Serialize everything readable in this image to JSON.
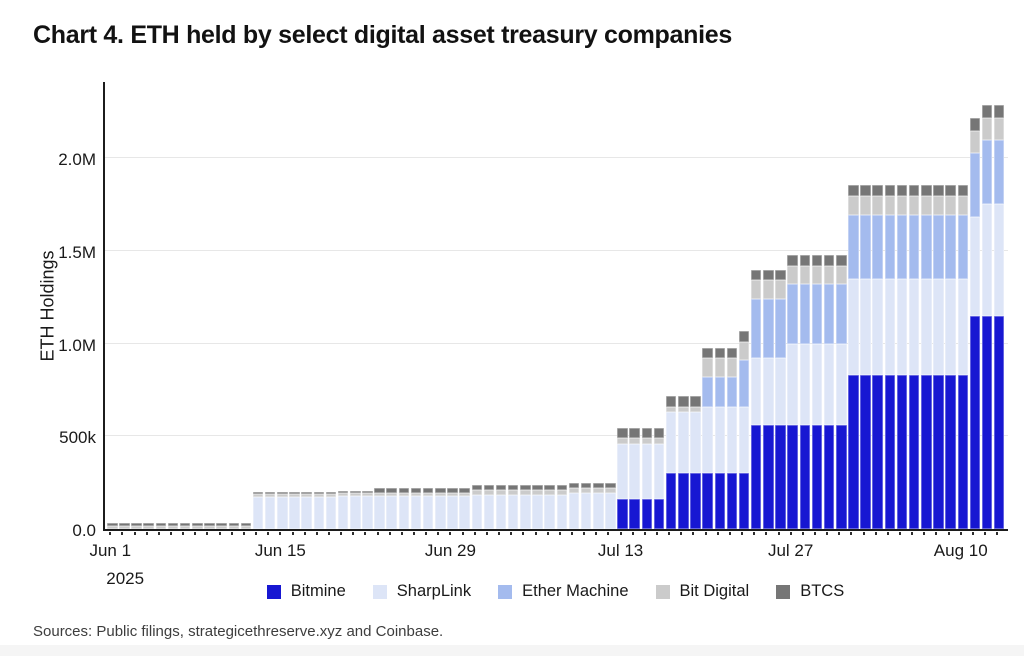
{
  "title": "Chart 4. ETH held by select digital asset treasury companies",
  "sources": "Sources: Public filings, strategicethreserve.xyz and Coinbase.",
  "chart_data": {
    "type": "bar",
    "stacked": true,
    "title": "Chart 4. ETH held by select digital asset treasury companies",
    "xlabel": "",
    "ylabel": "ETH Holdings",
    "unit": "thousand ETH",
    "ylim_thousands": [
      0,
      2420
    ],
    "grid": "horizontal",
    "legend_position": "bottom",
    "year_label": "2025",
    "y_ticks": [
      {
        "label": "0.0",
        "value": 0
      },
      {
        "label": "500k",
        "value": 500
      },
      {
        "label": "1.0M",
        "value": 1000
      },
      {
        "label": "1.5M",
        "value": 1500
      },
      {
        "label": "2.0M",
        "value": 2000
      }
    ],
    "x_ticks": [
      {
        "label": "Jun 1",
        "day_index": 0
      },
      {
        "label": "Jun 15",
        "day_index": 14
      },
      {
        "label": "Jun 29",
        "day_index": 28
      },
      {
        "label": "Jul 13",
        "day_index": 42
      },
      {
        "label": "Jul 27",
        "day_index": 56
      },
      {
        "label": "Aug 10",
        "day_index": 70
      }
    ],
    "legend": [
      {
        "key": "bitmine",
        "label": "Bitmine",
        "color": "#1717d2"
      },
      {
        "key": "sharplink",
        "label": "SharpLink",
        "color": "#dde5f7"
      },
      {
        "key": "ether_machine",
        "label": "Ether Machine",
        "color": "#a4bbee"
      },
      {
        "key": "bit_digital",
        "label": "Bit Digital",
        "color": "#cbcbcb"
      },
      {
        "key": "btcs",
        "label": "BTCS",
        "color": "#767676"
      }
    ],
    "series_order": [
      "bitmine",
      "sharplink",
      "ether_machine",
      "bit_digital",
      "btcs"
    ],
    "columns": [
      "date",
      "bitmine",
      "sharplink",
      "ether_machine",
      "bit_digital",
      "btcs"
    ],
    "days": [
      [
        "Jun 1",
        0,
        0,
        0,
        18,
        12
      ],
      [
        "Jun 2",
        0,
        0,
        0,
        18,
        12
      ],
      [
        "Jun 3",
        0,
        0,
        0,
        18,
        12
      ],
      [
        "Jun 4",
        0,
        0,
        0,
        18,
        12
      ],
      [
        "Jun 5",
        0,
        0,
        0,
        18,
        12
      ],
      [
        "Jun 6",
        0,
        0,
        0,
        18,
        12
      ],
      [
        "Jun 7",
        0,
        0,
        0,
        18,
        12
      ],
      [
        "Jun 8",
        0,
        0,
        0,
        18,
        12
      ],
      [
        "Jun 9",
        0,
        0,
        0,
        18,
        12
      ],
      [
        "Jun 10",
        0,
        0,
        0,
        18,
        12
      ],
      [
        "Jun 11",
        0,
        0,
        0,
        18,
        12
      ],
      [
        "Jun 12",
        0,
        0,
        0,
        18,
        12
      ],
      [
        "Jun 13",
        0,
        170,
        0,
        18,
        12
      ],
      [
        "Jun 14",
        0,
        170,
        0,
        18,
        12
      ],
      [
        "Jun 15",
        0,
        170,
        0,
        18,
        12
      ],
      [
        "Jun 16",
        0,
        170,
        0,
        18,
        12
      ],
      [
        "Jun 17",
        0,
        170,
        0,
        18,
        12
      ],
      [
        "Jun 18",
        0,
        170,
        0,
        18,
        12
      ],
      [
        "Jun 19",
        0,
        170,
        0,
        18,
        12
      ],
      [
        "Jun 20",
        0,
        176,
        0,
        18,
        12
      ],
      [
        "Jun 21",
        0,
        176,
        0,
        18,
        12
      ],
      [
        "Jun 22",
        0,
        176,
        0,
        18,
        12
      ],
      [
        "Jun 23",
        0,
        176,
        0,
        18,
        29
      ],
      [
        "Jun 24",
        0,
        176,
        0,
        18,
        29
      ],
      [
        "Jun 25",
        0,
        176,
        0,
        18,
        29
      ],
      [
        "Jun 26",
        0,
        176,
        0,
        18,
        29
      ],
      [
        "Jun 27",
        0,
        176,
        0,
        18,
        29
      ],
      [
        "Jun 28",
        0,
        176,
        0,
        18,
        29
      ],
      [
        "Jun 29",
        0,
        176,
        0,
        18,
        29
      ],
      [
        "Jun 30",
        0,
        176,
        0,
        18,
        29
      ],
      [
        "Jul 1",
        0,
        185,
        0,
        24,
        29
      ],
      [
        "Jul 2",
        0,
        185,
        0,
        24,
        29
      ],
      [
        "Jul 3",
        0,
        185,
        0,
        24,
        29
      ],
      [
        "Jul 4",
        0,
        185,
        0,
        24,
        29
      ],
      [
        "Jul 5",
        0,
        185,
        0,
        24,
        29
      ],
      [
        "Jul 6",
        0,
        185,
        0,
        24,
        29
      ],
      [
        "Jul 7",
        0,
        185,
        0,
        24,
        29
      ],
      [
        "Jul 8",
        0,
        185,
        0,
        24,
        29
      ],
      [
        "Jul 9",
        0,
        195,
        0,
        24,
        29
      ],
      [
        "Jul 10",
        0,
        195,
        0,
        24,
        29
      ],
      [
        "Jul 11",
        0,
        195,
        0,
        24,
        29
      ],
      [
        "Jul 12",
        0,
        195,
        0,
        24,
        29
      ],
      [
        "Jul 13",
        160,
        300,
        0,
        30,
        55
      ],
      [
        "Jul 14",
        160,
        300,
        0,
        30,
        55
      ],
      [
        "Jul 15",
        160,
        300,
        0,
        30,
        55
      ],
      [
        "Jul 16",
        160,
        300,
        0,
        30,
        55
      ],
      [
        "Jul 17",
        300,
        330,
        0,
        30,
        55
      ],
      [
        "Jul 18",
        300,
        330,
        0,
        30,
        55
      ],
      [
        "Jul 19",
        300,
        330,
        0,
        30,
        55
      ],
      [
        "Jul 20",
        300,
        360,
        160,
        100,
        55
      ],
      [
        "Jul 21",
        300,
        360,
        160,
        100,
        55
      ],
      [
        "Jul 22",
        300,
        360,
        160,
        100,
        55
      ],
      [
        "Jul 23",
        300,
        360,
        250,
        100,
        55
      ],
      [
        "Jul 24",
        560,
        360,
        320,
        100,
        55
      ],
      [
        "Jul 25",
        560,
        360,
        320,
        100,
        55
      ],
      [
        "Jul 26",
        560,
        360,
        320,
        100,
        55
      ],
      [
        "Jul 27",
        560,
        440,
        320,
        100,
        55
      ],
      [
        "Jul 28",
        560,
        440,
        320,
        100,
        55
      ],
      [
        "Jul 29",
        560,
        440,
        320,
        100,
        55
      ],
      [
        "Jul 30",
        560,
        440,
        320,
        100,
        55
      ],
      [
        "Jul 31",
        560,
        440,
        320,
        100,
        55
      ],
      [
        "Aug 1",
        830,
        520,
        345,
        100,
        60
      ],
      [
        "Aug 2",
        830,
        520,
        345,
        100,
        60
      ],
      [
        "Aug 3",
        830,
        520,
        345,
        100,
        60
      ],
      [
        "Aug 4",
        830,
        520,
        345,
        100,
        60
      ],
      [
        "Aug 5",
        830,
        520,
        345,
        100,
        60
      ],
      [
        "Aug 6",
        830,
        520,
        345,
        100,
        60
      ],
      [
        "Aug 7",
        830,
        520,
        345,
        100,
        60
      ],
      [
        "Aug 8",
        830,
        520,
        345,
        100,
        60
      ],
      [
        "Aug 9",
        830,
        520,
        345,
        100,
        60
      ],
      [
        "Aug 10",
        830,
        520,
        345,
        100,
        60
      ],
      [
        "Aug 11",
        1150,
        530,
        345,
        120,
        70
      ],
      [
        "Aug 12",
        1150,
        600,
        345,
        120,
        70
      ],
      [
        "Aug 13",
        1150,
        600,
        345,
        120,
        70
      ]
    ]
  }
}
